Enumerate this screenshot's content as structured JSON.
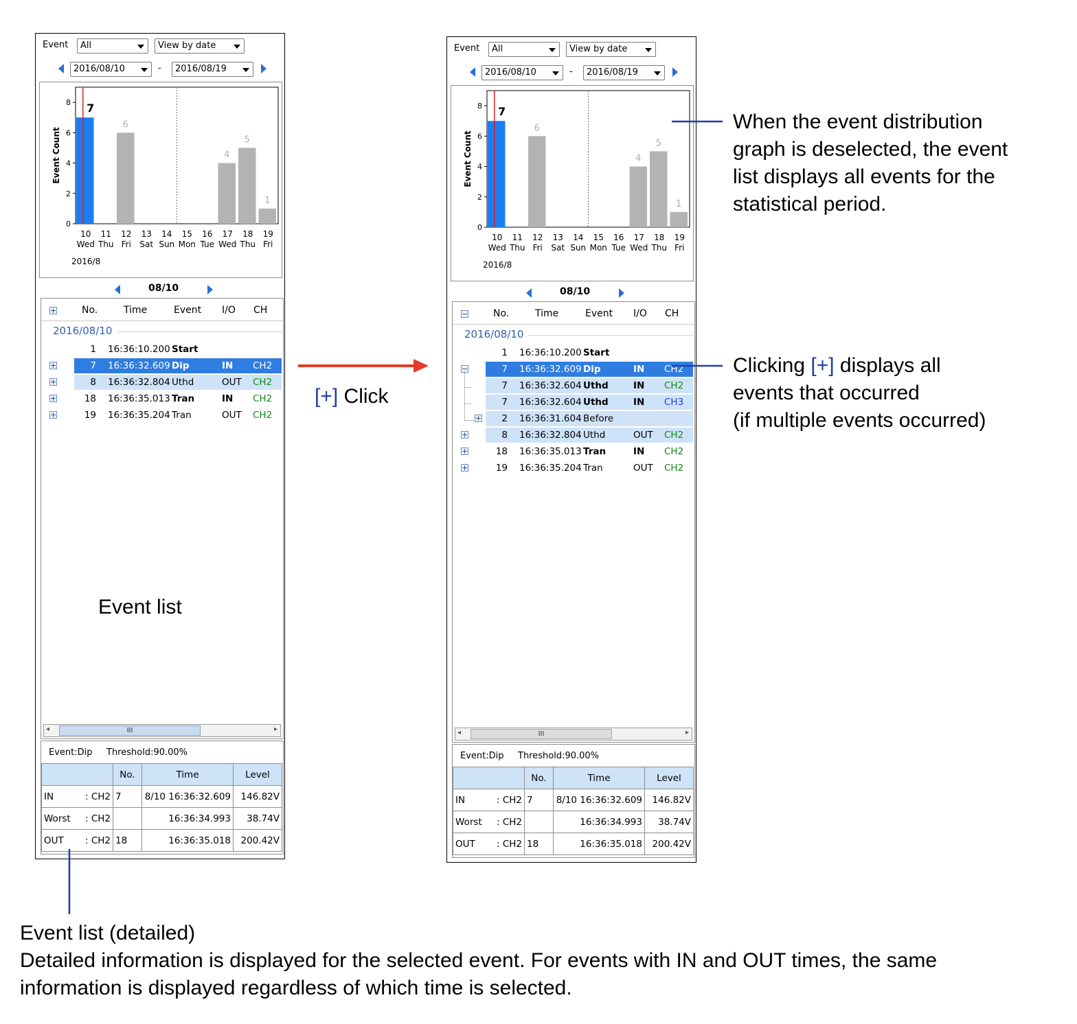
{
  "left": {
    "filter_label": "Event",
    "event_filter": "All",
    "view_mode": "View by date",
    "date_from": "2016/08/10",
    "date_sep": "-",
    "date_to": "2016/08/19",
    "date_nav": "08/10",
    "list_date": "2016/08/10",
    "headers": {
      "no": "No.",
      "time": "Time",
      "event": "Event",
      "io": "I/O",
      "ch": "CH"
    },
    "rows": [
      {
        "no": "1",
        "time": "16:36:10.200",
        "event": "Start",
        "io": "",
        "ch": ""
      },
      {
        "no": "7",
        "time": "16:36:32.609",
        "event": "Dip",
        "io": "IN",
        "ch": "CH2"
      },
      {
        "no": "8",
        "time": "16:36:32.804",
        "event": "Uthd",
        "io": "OUT",
        "ch": "CH2"
      },
      {
        "no": "18",
        "time": "16:36:35.013",
        "event": "Tran",
        "io": "IN",
        "ch": "CH2"
      },
      {
        "no": "19",
        "time": "16:36:35.204",
        "event": "Tran",
        "io": "OUT",
        "ch": "CH2"
      }
    ],
    "scroll_grip": "III",
    "detail": {
      "event": "Event:Dip",
      "threshold": "Threshold:90.00%",
      "cols": [
        "No.",
        "Time",
        "Level"
      ],
      "rows": [
        {
          "label": "IN",
          "ch": ": CH2",
          "no": "7",
          "time": "8/10 16:36:32.609",
          "level": "146.82V"
        },
        {
          "label": "Worst",
          "ch": ": CH2",
          "no": "",
          "time": "16:36:34.993",
          "level": "38.74V"
        },
        {
          "label": "OUT",
          "ch": ": CH2",
          "no": "18",
          "time": "16:36:35.018",
          "level": "200.42V"
        }
      ]
    }
  },
  "right": {
    "filter_label": "Event",
    "event_filter": "All",
    "view_mode": "View by date",
    "date_from": "2016/08/10",
    "date_sep": "-",
    "date_to": "2016/08/19",
    "date_nav": "08/10",
    "list_date": "2016/08/10",
    "headers": {
      "no": "No.",
      "time": "Time",
      "event": "Event",
      "io": "I/O",
      "ch": "CH"
    },
    "rows": [
      {
        "no": "1",
        "time": "16:36:10.200",
        "event": "Start",
        "io": "",
        "ch": ""
      },
      {
        "no": "7",
        "time": "16:36:32.609",
        "event": "Dip",
        "io": "IN",
        "ch": "CH2"
      },
      {
        "no": "7",
        "time": "16:36:32.604",
        "event": "Uthd",
        "io": "IN",
        "ch": "CH2"
      },
      {
        "no": "7",
        "time": "16:36:32.604",
        "event": "Uthd",
        "io": "IN",
        "ch": "CH3"
      },
      {
        "no": "2",
        "time": "16:36:31.604",
        "event": "Before",
        "io": "",
        "ch": ""
      },
      {
        "no": "8",
        "time": "16:36:32.804",
        "event": "Uthd",
        "io": "OUT",
        "ch": "CH2"
      },
      {
        "no": "18",
        "time": "16:36:35.013",
        "event": "Tran",
        "io": "IN",
        "ch": "CH2"
      },
      {
        "no": "19",
        "time": "16:36:35.204",
        "event": "Tran",
        "io": "OUT",
        "ch": "CH2"
      }
    ],
    "scroll_grip": "III",
    "detail": {
      "event": "Event:Dip",
      "threshold": "Threshold:90.00%",
      "cols": [
        "No.",
        "Time",
        "Level"
      ],
      "rows": [
        {
          "label": "IN",
          "ch": ": CH2",
          "no": "7",
          "time": "8/10 16:36:32.609",
          "level": "146.82V"
        },
        {
          "label": "Worst",
          "ch": ": CH2",
          "no": "",
          "time": "16:36:34.993",
          "level": "38.74V"
        },
        {
          "label": "OUT",
          "ch": ": CH2",
          "no": "18",
          "time": "16:36:35.018",
          "level": "200.42V"
        }
      ]
    }
  },
  "chart_data": {
    "type": "bar",
    "ylabel": "Event Count",
    "ylim": [
      0,
      9
    ],
    "yticks": [
      "0",
      "2",
      "4",
      "6",
      "8"
    ],
    "categories": [
      "10",
      "11",
      "12",
      "13",
      "14",
      "15",
      "16",
      "17",
      "18",
      "19"
    ],
    "weekdays": [
      "Wed",
      "Thu",
      "Fri",
      "Sat",
      "Sun",
      "Mon",
      "Tue",
      "Wed",
      "Thu",
      "Fri"
    ],
    "values": [
      7,
      0,
      6,
      0,
      0,
      0,
      0,
      4,
      5,
      1
    ],
    "value_labels": [
      "7",
      "",
      "6",
      "",
      "",
      "",
      "",
      "4",
      "5",
      "1"
    ],
    "selected_index": 0,
    "month_label": "2016/8",
    "colors": {
      "bar": "#b3b3b3",
      "selected": "#1a7ef0",
      "marker": "#e02020"
    }
  },
  "annotations": {
    "click": {
      "bracket": "[+]",
      "text": " Click"
    },
    "deselect": [
      "When the event distribution",
      "graph is deselected, the event",
      "list displays all events for the",
      "statistical period."
    ],
    "clicking": {
      "pre": "Clicking ",
      "bracket": "[+]",
      "post": " displays all",
      "line2": "events that occurred",
      "line3": "(if multiple events occurred)"
    },
    "event_list": "Event list",
    "detail_title": "Event list (detailed)",
    "detail_desc1": "Detailed information is displayed for the selected event. For events with IN and OUT times, the same",
    "detail_desc2": "information is displayed regardless of which time is selected."
  },
  "colors": {
    "accent": "#2f7de1",
    "selection_light": "#cfe3f8",
    "arrow": "#e33b2a",
    "link_blue": "#1a3fae"
  }
}
